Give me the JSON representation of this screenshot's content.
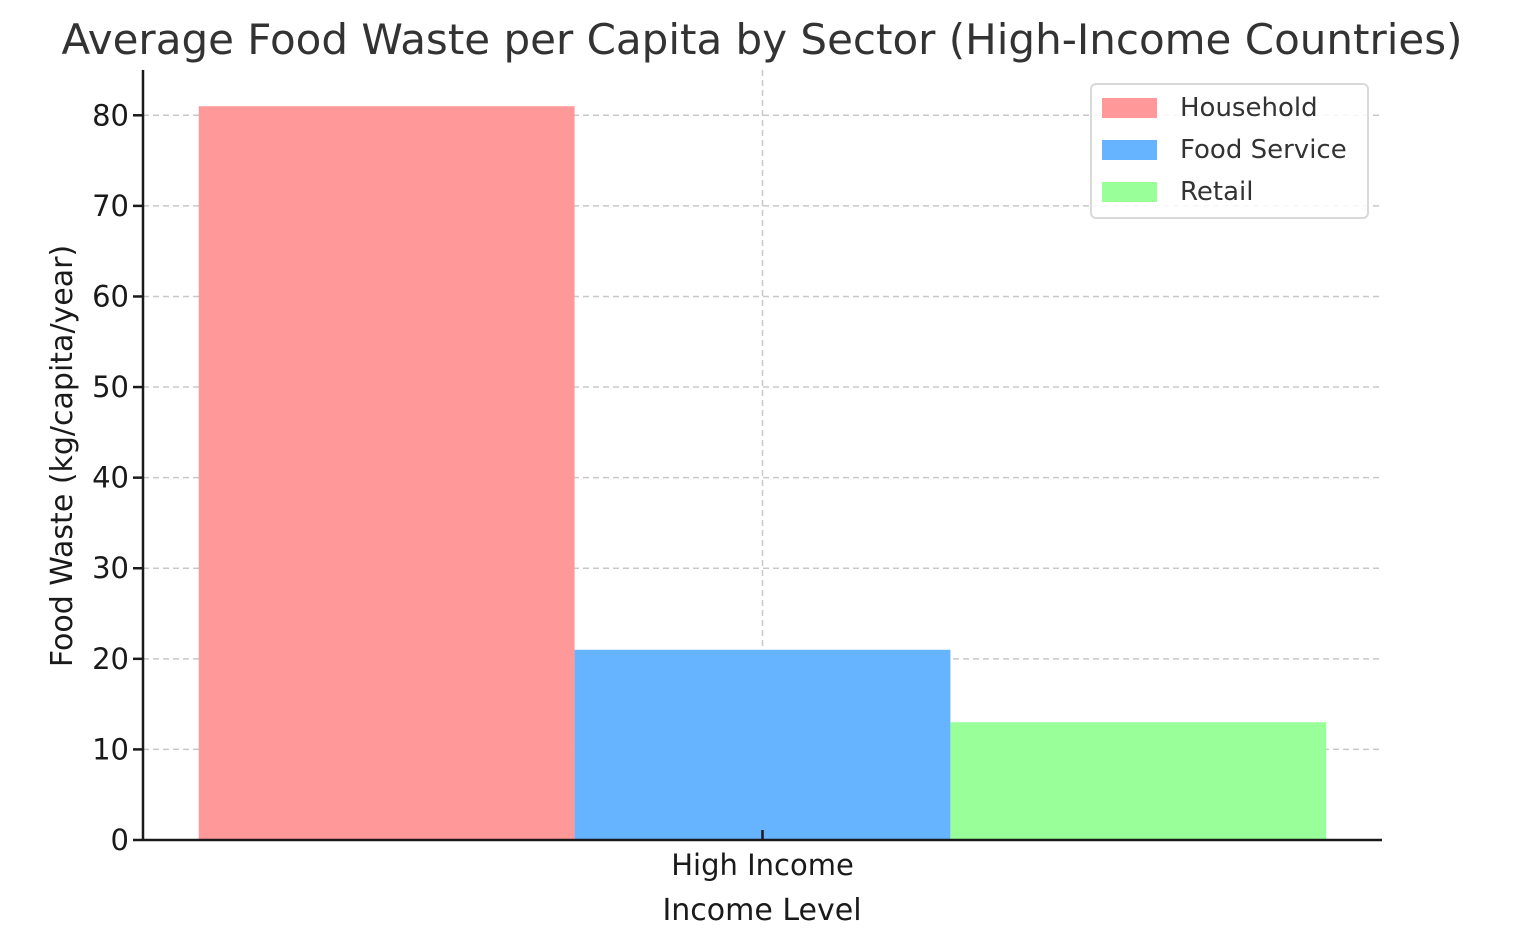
{
  "chart_data": {
    "type": "bar",
    "title": "Average Food Waste per Capita by Sector (High-Income Countries)",
    "xlabel": "Income Level",
    "ylabel": "Food Waste (kg/capita/year)",
    "categories": [
      "High Income"
    ],
    "series": [
      {
        "name": "Household",
        "values": [
          81
        ],
        "color": "#ff9999"
      },
      {
        "name": "Food Service",
        "values": [
          21
        ],
        "color": "#66b3ff"
      },
      {
        "name": "Retail",
        "values": [
          13
        ],
        "color": "#99ff99"
      }
    ],
    "ylim": [
      0,
      85
    ],
    "yticks": [
      0,
      10,
      20,
      30,
      40,
      50,
      60,
      70,
      80
    ],
    "grid": true,
    "legend_position": "top-right"
  }
}
